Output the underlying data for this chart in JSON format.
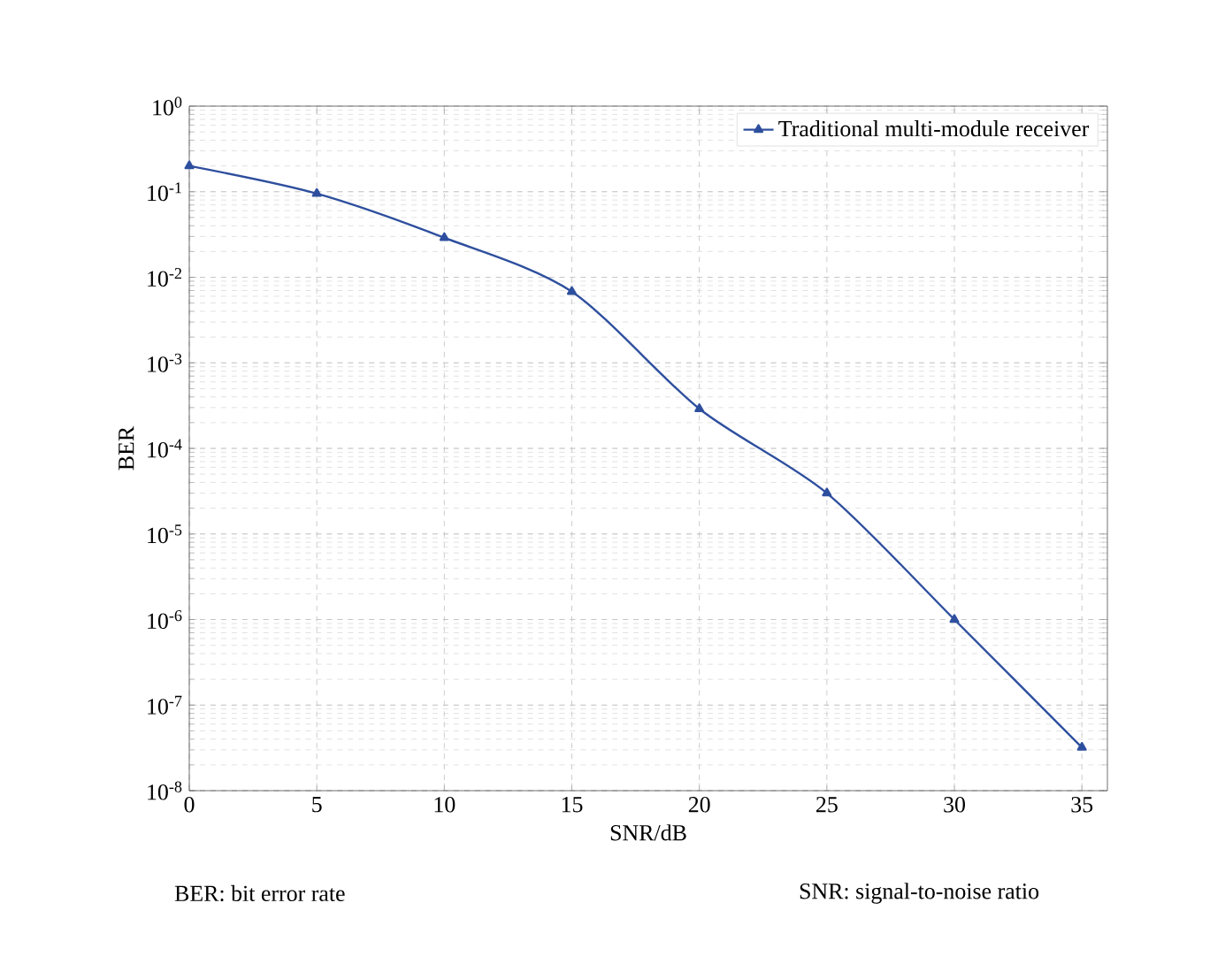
{
  "chart_data": {
    "type": "line",
    "xlabel": "SNR/dB",
    "ylabel": "BER",
    "x": [
      0,
      5,
      10,
      15,
      20,
      25,
      30,
      35
    ],
    "series": [
      {
        "name": "Traditional multi-module receiver",
        "color": "#2e4f9e",
        "values": [
          0.2,
          0.095,
          0.029,
          0.0068,
          0.00029,
          3e-05,
          1e-06,
          3.2e-08
        ]
      }
    ],
    "xlim": [
      0,
      36
    ],
    "xticks": [
      0,
      5,
      10,
      15,
      20,
      25,
      30,
      35
    ],
    "ylim": [
      1e-08,
      1
    ],
    "yticks": [
      {
        "value": 1e-08,
        "label": "10$^{-8}$"
      },
      {
        "value": 1e-07,
        "label": "10$^{-7}$"
      },
      {
        "value": 1e-06,
        "label": "10$^{-6}$"
      },
      {
        "value": 1e-05,
        "label": "10$^{-5}$"
      },
      {
        "value": 0.0001,
        "label": "10$^{-4}$"
      },
      {
        "value": 0.001,
        "label": "10$^{-3}$"
      },
      {
        "value": 0.01,
        "label": "10$^{-2}$"
      },
      {
        "value": 0.1,
        "label": "10$^{-1}$"
      },
      {
        "value": 1,
        "label": "10$^{0}$"
      }
    ],
    "log": "y",
    "grid": true,
    "legend": "top right",
    "marker": "triangle",
    "line_style": "solid",
    "annotations": [
      "BER: bit error rate",
      "SNR: signal-to-noise ratio"
    ]
  }
}
